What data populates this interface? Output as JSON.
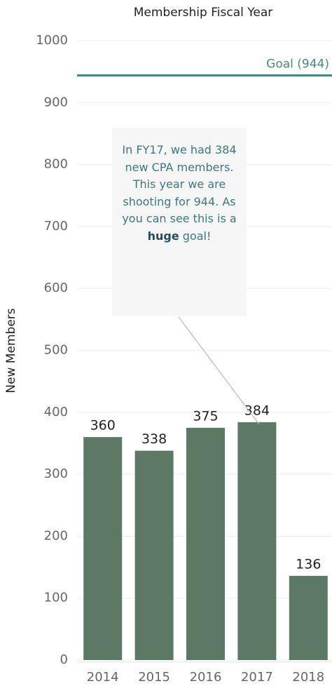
{
  "chart_data": {
    "type": "bar",
    "title": "Membership Fiscal Year",
    "y_label": "New Members",
    "categories": [
      "2014",
      "2015",
      "2016",
      "2017",
      "2018"
    ],
    "values": [
      360,
      338,
      375,
      384,
      136
    ],
    "color": "#5b7965",
    "ylim": [
      0,
      1000
    ],
    "yticks": [
      0,
      100,
      200,
      300,
      400,
      500,
      600,
      700,
      800,
      900,
      1000
    ],
    "grid": true,
    "goal": {
      "value": 944,
      "label": "Goal (944)",
      "color": "#3f8a84"
    },
    "annotation": [
      "In FY17, we had 384 new CPA members. This year we are shooting for 944. As you can see this is a",
      "huge",
      "goal!"
    ]
  }
}
